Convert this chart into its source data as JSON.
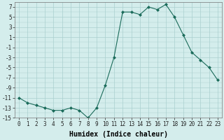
{
  "x": [
    0,
    1,
    2,
    3,
    4,
    5,
    6,
    7,
    8,
    9,
    10,
    11,
    12,
    13,
    14,
    15,
    16,
    17,
    18,
    19,
    20,
    21,
    22,
    23
  ],
  "y": [
    -11,
    -12,
    -12.5,
    -13,
    -13.5,
    -13.5,
    -13,
    -13.5,
    -15,
    -13,
    -8.5,
    -3,
    6,
    6,
    5.5,
    7,
    6.5,
    7.5,
    5,
    1.5,
    -2,
    -3.5,
    -5,
    -7.5
  ],
  "xlabel": "Humidex (Indice chaleur)",
  "xlim_min": -0.5,
  "xlim_max": 23.5,
  "ylim_min": -15,
  "ylim_max": 8,
  "yticks": [
    -15,
    -13,
    -11,
    -9,
    -7,
    -5,
    -3,
    -1,
    1,
    3,
    5,
    7
  ],
  "xticks": [
    0,
    1,
    2,
    3,
    4,
    5,
    6,
    7,
    8,
    9,
    10,
    11,
    12,
    13,
    14,
    15,
    16,
    17,
    18,
    19,
    20,
    21,
    22,
    23
  ],
  "line_color": "#1a6b5a",
  "marker": "D",
  "marker_size": 2.0,
  "bg_color": "#d4edec",
  "grid_color": "#aacfcf",
  "xlabel_fontsize": 7,
  "tick_fontsize": 5.5
}
